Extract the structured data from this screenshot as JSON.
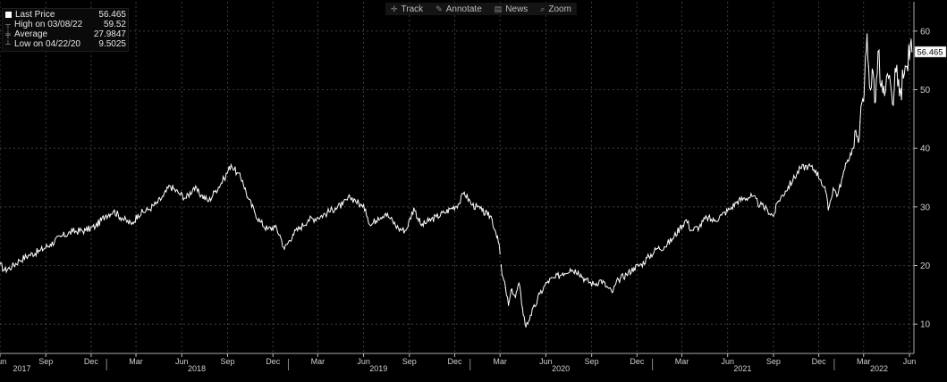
{
  "toolbar": {
    "items": [
      {
        "label": "Track",
        "icon": "crosshair-icon"
      },
      {
        "label": "Annotate",
        "icon": "pencil-icon"
      },
      {
        "label": "News",
        "icon": "news-icon"
      },
      {
        "label": "Zoom",
        "icon": "magnifier-icon"
      }
    ]
  },
  "legend": {
    "last_label": "Last Price",
    "last_value": "56.465",
    "high_label": "High on 03/08/22",
    "high_value": "59.52",
    "avg_label": "Average",
    "avg_value": "27.9847",
    "low_label": "Low on 04/22/20",
    "low_value": "9.5025"
  },
  "colors": {
    "background": "#000000",
    "line": "#ffffff",
    "grid": "#4a4a4a",
    "axis_text": "#cfcfcf"
  },
  "chart_data": {
    "type": "line",
    "title": "",
    "xlabel": "",
    "ylabel": "",
    "grid": true,
    "y_axis_position": "right",
    "ylim": [
      5,
      65
    ],
    "yticks": [
      10,
      20,
      30,
      40,
      50,
      60
    ],
    "xlim": [
      "2017-06-01",
      "2022-06-10"
    ],
    "month_ticks": [
      {
        "date": "2017-06-01",
        "label": "Jun"
      },
      {
        "date": "2017-09-01",
        "label": "Sep"
      },
      {
        "date": "2017-12-01",
        "label": "Dec"
      },
      {
        "date": "2018-03-01",
        "label": "Mar"
      },
      {
        "date": "2018-06-01",
        "label": "Jun"
      },
      {
        "date": "2018-09-01",
        "label": "Sep"
      },
      {
        "date": "2018-12-01",
        "label": "Dec"
      },
      {
        "date": "2019-03-01",
        "label": "Mar"
      },
      {
        "date": "2019-06-01",
        "label": "Jun"
      },
      {
        "date": "2019-09-01",
        "label": "Sep"
      },
      {
        "date": "2019-12-01",
        "label": "Dec"
      },
      {
        "date": "2020-03-01",
        "label": "Mar"
      },
      {
        "date": "2020-06-01",
        "label": "Jun"
      },
      {
        "date": "2020-09-01",
        "label": "Sep"
      },
      {
        "date": "2020-12-01",
        "label": "Dec"
      },
      {
        "date": "2021-03-01",
        "label": "Mar"
      },
      {
        "date": "2021-06-01",
        "label": "Jun"
      },
      {
        "date": "2021-09-01",
        "label": "Sep"
      },
      {
        "date": "2021-12-01",
        "label": "Dec"
      },
      {
        "date": "2022-03-01",
        "label": "Mar"
      },
      {
        "date": "2022-06-01",
        "label": "Jun"
      }
    ],
    "year_labels": [
      {
        "date": "2017-07-15",
        "label": "2017"
      },
      {
        "date": "2018-07-01",
        "label": "2018"
      },
      {
        "date": "2019-07-01",
        "label": "2019"
      },
      {
        "date": "2020-07-01",
        "label": "2020"
      },
      {
        "date": "2021-07-01",
        "label": "2021"
      },
      {
        "date": "2022-04-01",
        "label": "2022"
      }
    ],
    "last_value_label": "56.465",
    "series": [
      {
        "name": "Last Price",
        "points": [
          [
            "2017-06-01",
            20.2
          ],
          [
            "2017-06-10",
            19.2
          ],
          [
            "2017-06-25",
            19.8
          ],
          [
            "2017-07-10",
            20.9
          ],
          [
            "2017-07-30",
            21.8
          ],
          [
            "2017-08-20",
            22.5
          ],
          [
            "2017-09-10",
            23.6
          ],
          [
            "2017-10-01",
            24.9
          ],
          [
            "2017-10-25",
            25.8
          ],
          [
            "2017-11-20",
            26.0
          ],
          [
            "2017-12-10",
            26.7
          ],
          [
            "2017-12-31",
            28.6
          ],
          [
            "2018-01-15",
            29.3
          ],
          [
            "2018-02-01",
            28.1
          ],
          [
            "2018-02-20",
            27.0
          ],
          [
            "2018-03-05",
            28.7
          ],
          [
            "2018-03-25",
            29.5
          ],
          [
            "2018-04-10",
            30.5
          ],
          [
            "2018-04-25",
            31.8
          ],
          [
            "2018-05-08",
            33.6
          ],
          [
            "2018-05-25",
            32.4
          ],
          [
            "2018-06-10",
            31.5
          ],
          [
            "2018-06-25",
            33.3
          ],
          [
            "2018-07-10",
            32.0
          ],
          [
            "2018-07-25",
            31.0
          ],
          [
            "2018-08-08",
            32.8
          ],
          [
            "2018-08-25",
            34.8
          ],
          [
            "2018-09-08",
            37.2
          ],
          [
            "2018-09-20",
            35.8
          ],
          [
            "2018-10-01",
            34.5
          ],
          [
            "2018-10-12",
            31.5
          ],
          [
            "2018-10-25",
            29.2
          ],
          [
            "2018-11-05",
            27.5
          ],
          [
            "2018-11-20",
            26.2
          ],
          [
            "2018-12-05",
            26.6
          ],
          [
            "2018-12-15",
            25.2
          ],
          [
            "2018-12-24",
            22.8
          ],
          [
            "2019-01-10",
            25.3
          ],
          [
            "2019-01-25",
            26.5
          ],
          [
            "2019-02-10",
            27.8
          ],
          [
            "2019-03-01",
            28.2
          ],
          [
            "2019-03-20",
            29.0
          ],
          [
            "2019-04-05",
            29.8
          ],
          [
            "2019-04-20",
            30.4
          ],
          [
            "2019-05-05",
            31.6
          ],
          [
            "2019-05-15",
            31.2
          ],
          [
            "2019-05-30",
            30.0
          ],
          [
            "2019-06-05",
            29.6
          ],
          [
            "2019-06-15",
            26.8
          ],
          [
            "2019-06-30",
            28.2
          ],
          [
            "2019-07-15",
            28.9
          ],
          [
            "2019-07-25",
            28.0
          ],
          [
            "2019-08-10",
            26.3
          ],
          [
            "2019-08-25",
            26.0
          ],
          [
            "2019-09-10",
            29.8
          ],
          [
            "2019-09-25",
            26.8
          ],
          [
            "2019-10-10",
            27.6
          ],
          [
            "2019-10-25",
            28.3
          ],
          [
            "2019-11-10",
            29.0
          ],
          [
            "2019-11-25",
            29.8
          ],
          [
            "2019-12-10",
            30.6
          ],
          [
            "2019-12-20",
            32.5
          ],
          [
            "2020-01-05",
            30.3
          ],
          [
            "2020-01-15",
            30.0
          ],
          [
            "2020-01-25",
            29.3
          ],
          [
            "2020-02-05",
            28.6
          ],
          [
            "2020-02-12",
            28.4
          ],
          [
            "2020-02-20",
            26.0
          ],
          [
            "2020-02-25",
            25.0
          ],
          [
            "2020-03-01",
            22.0
          ],
          [
            "2020-03-05",
            18.4
          ],
          [
            "2020-03-12",
            16.2
          ],
          [
            "2020-03-18",
            13.2
          ],
          [
            "2020-03-25",
            16.0
          ],
          [
            "2020-04-01",
            14.6
          ],
          [
            "2020-04-08",
            17.0
          ],
          [
            "2020-04-15",
            12.8
          ],
          [
            "2020-04-22",
            9.5
          ],
          [
            "2020-05-01",
            11.5
          ],
          [
            "2020-05-10",
            13.0
          ],
          [
            "2020-05-20",
            15.2
          ],
          [
            "2020-06-05",
            17.3
          ],
          [
            "2020-06-20",
            17.9
          ],
          [
            "2020-07-05",
            18.7
          ],
          [
            "2020-07-20",
            19.4
          ],
          [
            "2020-08-05",
            19.0
          ],
          [
            "2020-08-20",
            17.5
          ],
          [
            "2020-09-05",
            16.8
          ],
          [
            "2020-09-20",
            17.5
          ],
          [
            "2020-10-01",
            16.4
          ],
          [
            "2020-10-12",
            15.4
          ],
          [
            "2020-10-25",
            17.6
          ],
          [
            "2020-11-10",
            18.5
          ],
          [
            "2020-11-25",
            19.6
          ],
          [
            "2020-12-10",
            20.2
          ],
          [
            "2020-12-25",
            21.5
          ],
          [
            "2021-01-10",
            22.9
          ],
          [
            "2021-01-25",
            23.2
          ],
          [
            "2021-02-10",
            24.5
          ],
          [
            "2021-02-25",
            26.4
          ],
          [
            "2021-03-10",
            27.8
          ],
          [
            "2021-03-20",
            26.0
          ],
          [
            "2021-04-05",
            26.6
          ],
          [
            "2021-04-20",
            28.2
          ],
          [
            "2021-05-05",
            27.6
          ],
          [
            "2021-05-20",
            28.6
          ],
          [
            "2021-06-05",
            29.6
          ],
          [
            "2021-06-20",
            30.9
          ],
          [
            "2021-07-05",
            31.5
          ],
          [
            "2021-07-20",
            31.8
          ],
          [
            "2021-08-05",
            30.3
          ],
          [
            "2021-08-20",
            29.5
          ],
          [
            "2021-09-01",
            28.4
          ],
          [
            "2021-09-10",
            30.9
          ],
          [
            "2021-09-25",
            32.7
          ],
          [
            "2021-10-10",
            34.6
          ],
          [
            "2021-10-25",
            36.6
          ],
          [
            "2021-11-10",
            37.0
          ],
          [
            "2021-11-25",
            36.2
          ],
          [
            "2021-12-05",
            34.6
          ],
          [
            "2021-12-15",
            32.6
          ],
          [
            "2021-12-20",
            29.5
          ],
          [
            "2021-12-30",
            33.2
          ],
          [
            "2022-01-08",
            32.0
          ],
          [
            "2022-01-18",
            35.2
          ],
          [
            "2022-01-28",
            38.0
          ],
          [
            "2022-02-08",
            40.0
          ],
          [
            "2022-02-15",
            42.0
          ],
          [
            "2022-02-22",
            44.5
          ],
          [
            "2022-03-01",
            48.0
          ],
          [
            "2022-03-03",
            52.0
          ],
          [
            "2022-03-08",
            59.52
          ],
          [
            "2022-03-11",
            54.0
          ],
          [
            "2022-03-15",
            50.0
          ],
          [
            "2022-03-20",
            53.0
          ],
          [
            "2022-03-25",
            48.0
          ],
          [
            "2022-03-30",
            56.5
          ],
          [
            "2022-04-05",
            50.5
          ],
          [
            "2022-04-12",
            49.0
          ],
          [
            "2022-04-20",
            52.0
          ],
          [
            "2022-04-28",
            47.5
          ],
          [
            "2022-05-05",
            53.0
          ],
          [
            "2022-05-12",
            49.0
          ],
          [
            "2022-05-20",
            52.0
          ],
          [
            "2022-05-27",
            54.0
          ],
          [
            "2022-06-03",
            57.5
          ],
          [
            "2022-06-06",
            56.465
          ]
        ]
      }
    ]
  }
}
